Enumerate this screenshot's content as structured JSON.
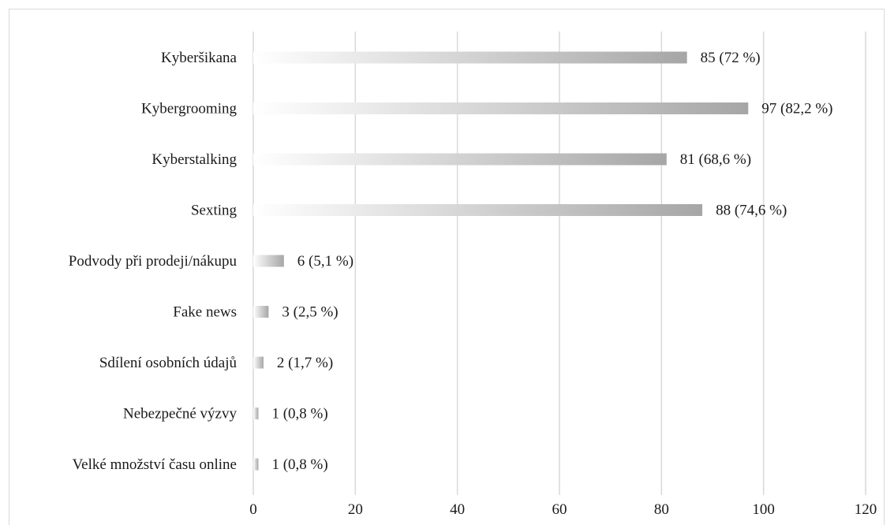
{
  "chart_data": {
    "type": "bar",
    "orientation": "horizontal",
    "title": "",
    "xlabel": "",
    "ylabel": "",
    "categories": [
      "Kyberšikana",
      "Kybergrooming",
      "Kyberstalking",
      "Sexting",
      "Podvody při prodeji/nákupu",
      "Fake news",
      "Sdílení osobních údajů",
      "Nebezpečné výzvy",
      "Velké množství času online"
    ],
    "values": [
      85,
      97,
      81,
      88,
      6,
      3,
      2,
      1,
      1
    ],
    "data_labels": [
      "85 (72 %)",
      "97 (82,2 %)",
      "81 (68,6 %)",
      "88 (74,6 %)",
      "6 (5,1 %)",
      "3 (2,5 %)",
      "2 (1,7 %)",
      "1 (0,8 %)",
      "1 (0,8 %)"
    ],
    "xlim": [
      0,
      120
    ],
    "x_ticks": [
      0,
      20,
      40,
      60,
      80,
      100,
      120
    ],
    "x_tick_labels": [
      "0",
      "20",
      "40",
      "60",
      "80",
      "100",
      "120"
    ],
    "grid": "vertical",
    "legend": "none",
    "bar_color": "#a6a6a6",
    "bar_fade_color": "#ffffff",
    "grid_color": "#d9d9d9"
  }
}
